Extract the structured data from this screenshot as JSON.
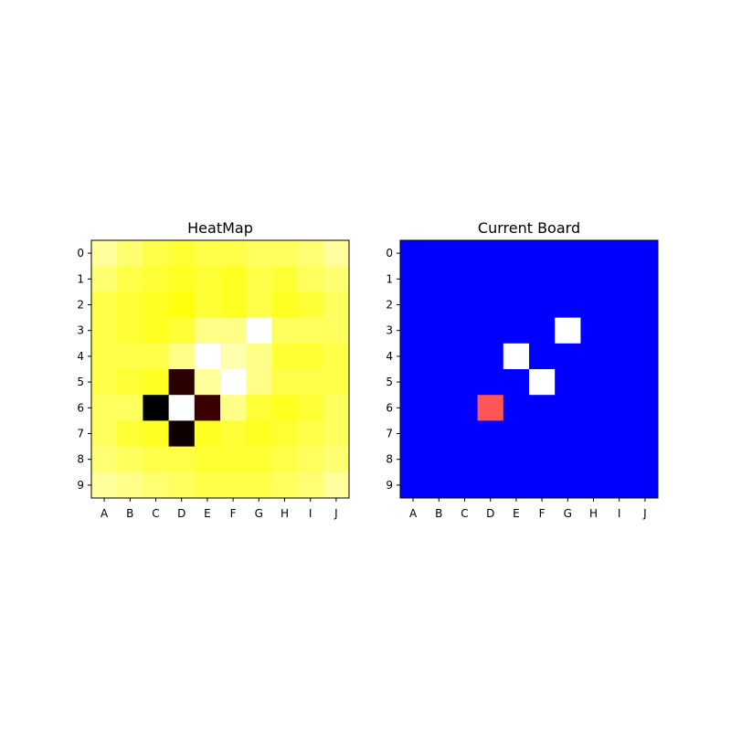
{
  "chart_data": [
    {
      "type": "heatmap",
      "title": "HeatMap",
      "colormap": "hot",
      "x_categories": [
        "A",
        "B",
        "C",
        "D",
        "E",
        "F",
        "G",
        "H",
        "I",
        "J"
      ],
      "y_categories": [
        "0",
        "1",
        "2",
        "3",
        "4",
        "5",
        "6",
        "7",
        "8",
        "9"
      ],
      "values": [
        [
          0.9,
          0.86,
          0.82,
          0.8,
          0.82,
          0.82,
          0.84,
          0.84,
          0.86,
          0.9
        ],
        [
          0.86,
          0.82,
          0.8,
          0.78,
          0.8,
          0.78,
          0.82,
          0.8,
          0.84,
          0.86
        ],
        [
          0.82,
          0.8,
          0.78,
          0.76,
          0.8,
          0.78,
          0.82,
          0.78,
          0.8,
          0.84
        ],
        [
          0.82,
          0.8,
          0.78,
          0.8,
          0.88,
          0.88,
          1.0,
          0.84,
          0.84,
          0.84
        ],
        [
          0.82,
          0.82,
          0.82,
          0.88,
          1.0,
          0.92,
          0.88,
          0.8,
          0.8,
          0.82
        ],
        [
          0.82,
          0.8,
          0.78,
          0.06,
          0.9,
          1.0,
          0.88,
          0.82,
          0.82,
          0.82
        ],
        [
          0.84,
          0.84,
          0.0,
          1.0,
          0.08,
          0.88,
          0.8,
          0.78,
          0.8,
          0.84
        ],
        [
          0.84,
          0.8,
          0.78,
          0.02,
          0.78,
          0.8,
          0.78,
          0.8,
          0.82,
          0.84
        ],
        [
          0.86,
          0.84,
          0.82,
          0.82,
          0.8,
          0.8,
          0.8,
          0.82,
          0.84,
          0.86
        ],
        [
          0.9,
          0.88,
          0.86,
          0.84,
          0.82,
          0.82,
          0.82,
          0.84,
          0.86,
          0.9
        ]
      ]
    },
    {
      "type": "heatmap",
      "title": "Current Board",
      "x_categories": [
        "A",
        "B",
        "C",
        "D",
        "E",
        "F",
        "G",
        "H",
        "I",
        "J"
      ],
      "y_categories": [
        "0",
        "1",
        "2",
        "3",
        "4",
        "5",
        "6",
        "7",
        "8",
        "9"
      ],
      "values": [
        [
          0,
          0,
          0,
          0,
          0,
          0,
          0,
          0,
          0,
          0
        ],
        [
          0,
          0,
          0,
          0,
          0,
          0,
          0,
          0,
          0,
          0
        ],
        [
          0,
          0,
          0,
          0,
          0,
          0,
          0,
          0,
          0,
          0
        ],
        [
          0,
          0,
          0,
          0,
          0,
          0,
          1,
          0,
          0,
          0
        ],
        [
          0,
          0,
          0,
          0,
          1,
          0,
          0,
          0,
          0,
          0
        ],
        [
          0,
          0,
          0,
          0,
          0,
          1,
          0,
          0,
          0,
          0
        ],
        [
          0,
          0,
          0,
          2,
          0,
          0,
          0,
          0,
          0,
          0
        ],
        [
          0,
          0,
          0,
          0,
          0,
          0,
          0,
          0,
          0,
          0
        ],
        [
          0,
          0,
          0,
          0,
          0,
          0,
          0,
          0,
          0,
          0
        ],
        [
          0,
          0,
          0,
          0,
          0,
          0,
          0,
          0,
          0,
          0
        ]
      ],
      "value_colors": {
        "0": "#0000ff",
        "1": "#ffffff",
        "2": "#ff5555"
      }
    }
  ]
}
